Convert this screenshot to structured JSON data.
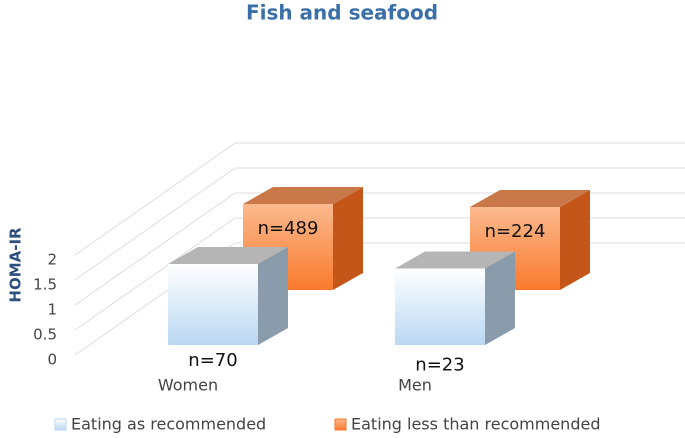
{
  "chart_data": {
    "type": "bar3d",
    "title": "Fish and seafood",
    "y_label": "HOMA-IR",
    "categories": [
      "Women",
      "Men"
    ],
    "series": [
      {
        "name": "Eating as recommended",
        "color": "#b9d8f2",
        "values": [
          1.62,
          1.53
        ],
        "bar_labels": [
          "n=70",
          "n=23"
        ]
      },
      {
        "name": "Eating less than recommended",
        "color": "#f97a2c",
        "values": [
          1.72,
          1.66
        ],
        "bar_labels": [
          "n=489",
          "n=224"
        ]
      }
    ],
    "ylim": [
      0,
      2
    ],
    "yticks": [
      0,
      0.5,
      1,
      1.5,
      2
    ],
    "grid": true,
    "legend": "bottom"
  }
}
